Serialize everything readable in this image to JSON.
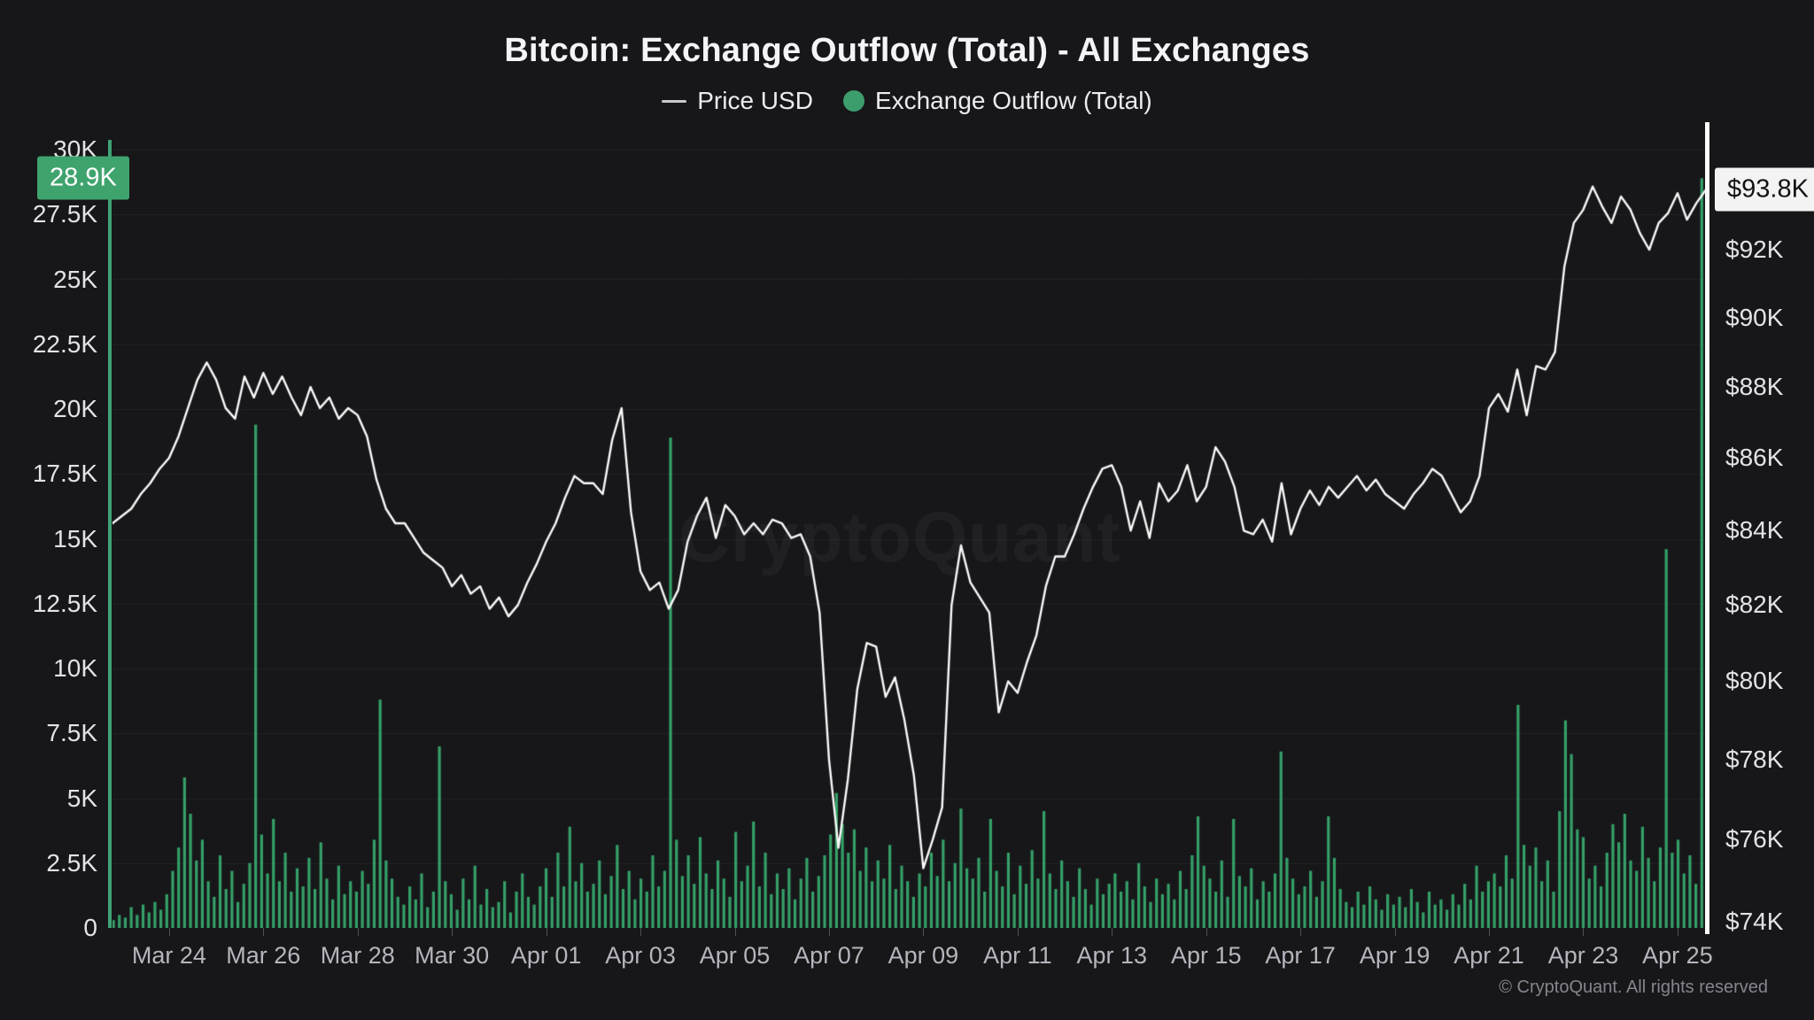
{
  "header": {
    "title": "Bitcoin: Exchange Outflow (Total) - All Exchanges",
    "legend": [
      {
        "label": "Price USD",
        "marker": "dash",
        "marker_color": "#c9c9cf"
      },
      {
        "label": "Exchange Outflow (Total)",
        "marker": "dot",
        "marker_color": "#3d9e6d"
      }
    ]
  },
  "watermark": "CryptoQuant",
  "footer": "© CryptoQuant. All rights reserved",
  "chart_data": {
    "type": "mixed",
    "title": "Bitcoin: Exchange Outflow (Total) - All Exchanges",
    "grid": {
      "show": true,
      "color": "rgba(255,255,255,0.05)"
    },
    "legend_position": "top-center",
    "x_axis": {
      "domain_days": [
        -1.2,
        32.64
      ],
      "day_zero_label": "Mar 24",
      "ticks": [
        {
          "day": 0,
          "label": "Mar 24"
        },
        {
          "day": 2,
          "label": "Mar 26"
        },
        {
          "day": 4,
          "label": "Mar 28"
        },
        {
          "day": 6,
          "label": "Mar 30"
        },
        {
          "day": 8,
          "label": "Apr 01"
        },
        {
          "day": 10,
          "label": "Apr 03"
        },
        {
          "day": 12,
          "label": "Apr 05"
        },
        {
          "day": 14,
          "label": "Apr 07"
        },
        {
          "day": 16,
          "label": "Apr 09"
        },
        {
          "day": 18,
          "label": "Apr 11"
        },
        {
          "day": 20,
          "label": "Apr 13"
        },
        {
          "day": 22,
          "label": "Apr 15"
        },
        {
          "day": 24,
          "label": "Apr 17"
        },
        {
          "day": 26,
          "label": "Apr 19"
        },
        {
          "day": 28,
          "label": "Apr 21"
        },
        {
          "day": 30,
          "label": "Apr 23"
        },
        {
          "day": 32,
          "label": "Apr 25"
        }
      ]
    },
    "left_axis": {
      "series": "Exchange Outflow (Total)",
      "unit": "BTC",
      "scale": "linear",
      "min": 0,
      "max": 30000,
      "ticks": [
        {
          "value": 0,
          "label": "0"
        },
        {
          "value": 2500,
          "label": "2.5K"
        },
        {
          "value": 5000,
          "label": "5K"
        },
        {
          "value": 7500,
          "label": "7.5K"
        },
        {
          "value": 10000,
          "label": "10K"
        },
        {
          "value": 12500,
          "label": "12.5K"
        },
        {
          "value": 15000,
          "label": "15K"
        },
        {
          "value": 17500,
          "label": "17.5K"
        },
        {
          "value": 20000,
          "label": "20K"
        },
        {
          "value": 22500,
          "label": "22.5K"
        },
        {
          "value": 25000,
          "label": "25K"
        },
        {
          "value": 27500,
          "label": "27.5K"
        },
        {
          "value": 30000,
          "label": "30K"
        }
      ]
    },
    "right_axis": {
      "series": "Price USD",
      "unit": "USD",
      "scale": "log",
      "min": 73860,
      "max": 95030,
      "ticks": [
        {
          "value": 74000,
          "label": "$74K"
        },
        {
          "value": 76000,
          "label": "$76K"
        },
        {
          "value": 78000,
          "label": "$78K"
        },
        {
          "value": 80000,
          "label": "$80K"
        },
        {
          "value": 82000,
          "label": "$82K"
        },
        {
          "value": 84000,
          "label": "$84K"
        },
        {
          "value": 86000,
          "label": "$86K"
        },
        {
          "value": 88000,
          "label": "$88K"
        },
        {
          "value": 90000,
          "label": "$90K"
        },
        {
          "value": 92000,
          "label": "$92K"
        }
      ]
    },
    "badges": {
      "left": {
        "label": "28.9K",
        "value": 28900,
        "bg": "#3fa36e",
        "text_color": "#ffffff"
      },
      "right": {
        "label": "$93.8K",
        "value": 93800,
        "bg": "#f3f3f3",
        "text_color": "#141416"
      }
    },
    "highlight_lines": {
      "left_color": "#3fa376",
      "right_color": "#fbfbfb"
    },
    "series": [
      {
        "name": "Price USD",
        "type": "line",
        "axis": "right",
        "color": "#fafafa",
        "line_width": 2.4,
        "x_start_day": -1.2,
        "x_step_days": 0.2,
        "values_usd_thousands": [
          84.2,
          84.4,
          84.6,
          85.0,
          85.3,
          85.7,
          86.0,
          86.6,
          87.4,
          88.2,
          88.7,
          88.2,
          87.4,
          87.1,
          88.3,
          87.7,
          88.4,
          87.8,
          88.3,
          87.7,
          87.2,
          88.0,
          87.4,
          87.7,
          87.1,
          87.4,
          87.2,
          86.6,
          85.4,
          84.6,
          84.2,
          84.2,
          83.8,
          83.4,
          83.2,
          83.0,
          82.5,
          82.8,
          82.3,
          82.5,
          81.9,
          82.2,
          81.7,
          82.0,
          82.6,
          83.1,
          83.7,
          84.2,
          84.9,
          85.5,
          85.3,
          85.3,
          85.0,
          86.5,
          87.4,
          84.5,
          82.9,
          82.4,
          82.6,
          81.9,
          82.4,
          83.7,
          84.4,
          84.9,
          83.8,
          84.7,
          84.4,
          83.9,
          84.2,
          83.9,
          84.3,
          84.2,
          83.8,
          83.9,
          83.3,
          81.8,
          78.0,
          75.8,
          77.5,
          79.8,
          81.0,
          80.9,
          79.6,
          80.1,
          79.0,
          77.6,
          75.3,
          76.0,
          76.8,
          82.0,
          83.6,
          82.6,
          82.2,
          81.8,
          79.2,
          80.0,
          79.7,
          80.5,
          81.2,
          82.5,
          83.3,
          83.3,
          83.9,
          84.6,
          85.2,
          85.7,
          85.8,
          85.2,
          84.0,
          84.8,
          83.8,
          85.3,
          84.8,
          85.1,
          85.8,
          84.8,
          85.2,
          86.3,
          85.9,
          85.2,
          84.0,
          83.9,
          84.3,
          83.7,
          85.3,
          83.9,
          84.6,
          85.1,
          84.7,
          85.2,
          84.9,
          85.2,
          85.5,
          85.1,
          85.4,
          85.0,
          84.8,
          84.6,
          85.0,
          85.3,
          85.7,
          85.5,
          85.0,
          84.5,
          84.8,
          85.5,
          87.4,
          87.8,
          87.3,
          88.5,
          87.2,
          88.6,
          88.5,
          89.0,
          91.5,
          92.8,
          93.2,
          93.9,
          93.3,
          92.8,
          93.6,
          93.2,
          92.5,
          92.0,
          92.8,
          93.1,
          93.7,
          92.9,
          93.4,
          93.8
        ]
      },
      {
        "name": "Exchange Outflow (Total)",
        "type": "bar",
        "axis": "left",
        "color": "#35a068",
        "x_start_day": -1.18,
        "x_end_day": 32.64,
        "values_btc_thousands": [
          0.3,
          0.5,
          0.4,
          0.8,
          0.5,
          0.9,
          0.6,
          1.0,
          0.7,
          1.3,
          2.2,
          3.1,
          5.8,
          4.4,
          2.6,
          3.4,
          1.8,
          1.2,
          2.8,
          1.5,
          2.2,
          1.0,
          1.7,
          2.5,
          19.4,
          3.6,
          2.1,
          4.2,
          1.8,
          2.9,
          1.4,
          2.3,
          1.6,
          2.7,
          1.5,
          3.3,
          1.9,
          1.1,
          2.4,
          1.3,
          1.8,
          1.4,
          2.2,
          1.7,
          3.4,
          8.8,
          2.6,
          1.9,
          1.2,
          0.9,
          1.6,
          1.1,
          2.1,
          0.8,
          1.4,
          7.0,
          1.8,
          1.3,
          0.7,
          1.9,
          1.1,
          2.4,
          0.9,
          1.5,
          0.8,
          1.0,
          1.8,
          0.6,
          1.4,
          2.1,
          1.2,
          0.9,
          1.6,
          2.3,
          1.2,
          2.9,
          1.6,
          3.9,
          1.8,
          2.5,
          1.4,
          1.7,
          2.6,
          1.3,
          2.0,
          3.2,
          1.5,
          2.2,
          1.1,
          1.9,
          1.4,
          2.8,
          1.6,
          2.2,
          18.9,
          3.4,
          2.0,
          2.8,
          1.7,
          3.5,
          2.1,
          1.5,
          2.6,
          1.9,
          1.2,
          3.7,
          1.8,
          2.4,
          4.1,
          1.6,
          2.9,
          1.3,
          2.1,
          1.5,
          2.3,
          1.1,
          1.9,
          2.7,
          1.4,
          2.0,
          2.8,
          3.6,
          5.2,
          4.0,
          2.9,
          3.8,
          2.2,
          3.1,
          1.8,
          2.6,
          1.9,
          3.2,
          1.5,
          2.4,
          1.8,
          1.2,
          2.1,
          1.6,
          2.9,
          2.0,
          3.4,
          1.8,
          2.5,
          4.6,
          2.3,
          1.9,
          2.7,
          1.4,
          4.2,
          2.2,
          1.6,
          2.9,
          1.3,
          2.4,
          1.7,
          3.0,
          1.9,
          4.5,
          2.1,
          1.5,
          2.6,
          1.8,
          1.2,
          2.3,
          1.5,
          0.9,
          1.9,
          1.3,
          1.7,
          2.1,
          1.4,
          1.8,
          1.1,
          2.5,
          1.6,
          1.0,
          1.9,
          1.3,
          1.7,
          1.1,
          2.2,
          1.5,
          2.8,
          4.3,
          2.4,
          1.9,
          1.4,
          2.6,
          1.2,
          4.2,
          2.0,
          1.6,
          2.3,
          1.1,
          1.8,
          1.4,
          2.1,
          6.8,
          2.7,
          1.9,
          1.3,
          1.6,
          2.2,
          1.2,
          1.8,
          4.3,
          2.7,
          1.5,
          1.0,
          0.8,
          1.4,
          0.9,
          1.6,
          1.1,
          0.7,
          1.3,
          0.9,
          1.2,
          0.8,
          1.5,
          1.0,
          0.6,
          1.4,
          0.9,
          1.1,
          0.7,
          1.3,
          0.9,
          1.7,
          1.1,
          2.4,
          1.4,
          1.8,
          2.1,
          1.6,
          2.8,
          1.9,
          8.6,
          3.2,
          2.4,
          3.1,
          1.8,
          2.6,
          1.4,
          4.5,
          8.0,
          6.7,
          3.8,
          3.5,
          1.9,
          2.4,
          1.6,
          2.9,
          4.0,
          3.3,
          4.4,
          2.6,
          2.2,
          3.9,
          2.7,
          1.8,
          3.1,
          14.6,
          2.9,
          3.4,
          2.1,
          2.8,
          1.7,
          28.9,
          1.2
        ]
      }
    ]
  }
}
